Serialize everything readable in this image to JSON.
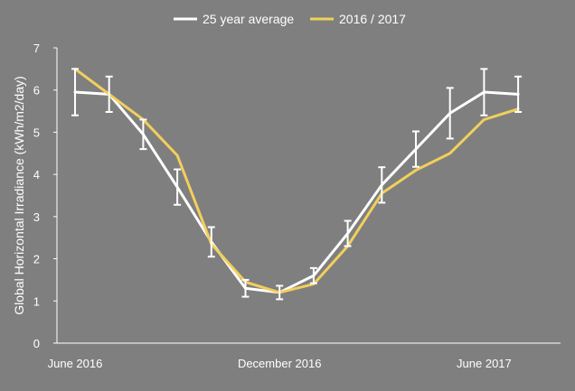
{
  "chart_data": {
    "type": "line",
    "title": "",
    "xlabel": "",
    "ylabel": "Global Horizontal Irradiance (kWh/m2/day)",
    "ylim": [
      0,
      7
    ],
    "yticks": [
      0,
      1,
      2,
      3,
      4,
      5,
      6,
      7
    ],
    "x_tick_labels": [
      {
        "index": 0,
        "label": "June 2016"
      },
      {
        "index": 6,
        "label": "December 2016"
      },
      {
        "index": 12,
        "label": "June 2017"
      }
    ],
    "x_count": 14,
    "grid": false,
    "legend_position": "top",
    "colors": {
      "background": "#7f7f7f",
      "axis": "#ffffff",
      "text": "#ffffff"
    },
    "series": [
      {
        "name": "25 year average",
        "color": "#ffffff",
        "values": [
          5.95,
          5.9,
          4.95,
          3.7,
          2.4,
          1.3,
          1.2,
          1.6,
          2.6,
          3.75,
          4.6,
          5.45,
          5.95,
          5.9
        ],
        "error": [
          0.55,
          0.42,
          0.35,
          0.42,
          0.35,
          0.2,
          0.16,
          0.18,
          0.3,
          0.42,
          0.42,
          0.6,
          0.55,
          0.42
        ]
      },
      {
        "name": "2016 / 2017",
        "color": "#f2cf5b",
        "values": [
          6.5,
          5.9,
          5.3,
          4.45,
          2.35,
          1.45,
          1.2,
          1.4,
          2.3,
          3.55,
          4.1,
          4.5,
          5.3,
          5.55
        ]
      }
    ]
  }
}
